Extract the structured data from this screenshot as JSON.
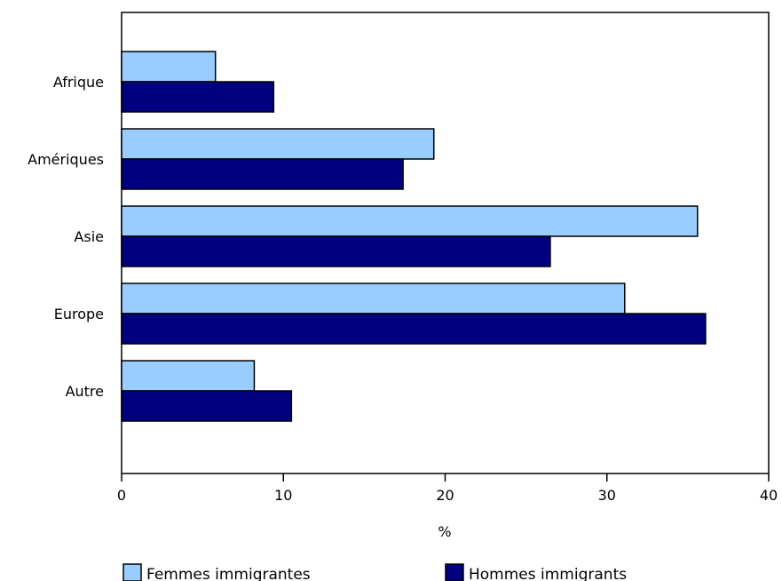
{
  "chart_data": {
    "type": "bar",
    "orientation": "horizontal",
    "title": "",
    "xlabel": "%",
    "ylabel": "",
    "xlim": [
      0,
      40
    ],
    "x_ticks": [
      0,
      10,
      20,
      30,
      40
    ],
    "categories": [
      "Afrique",
      "Amériques",
      "Asie",
      "Europe",
      "Autre"
    ],
    "series": [
      {
        "name": "Femmes immigrantes",
        "color": "#99ccff",
        "values": [
          5.8,
          19.3,
          35.6,
          31.1,
          8.2
        ]
      },
      {
        "name": "Hommes immigrants",
        "color": "#000080",
        "values": [
          9.4,
          17.4,
          26.5,
          36.1,
          10.5
        ]
      }
    ],
    "grid": false,
    "legend_position": "bottom"
  }
}
